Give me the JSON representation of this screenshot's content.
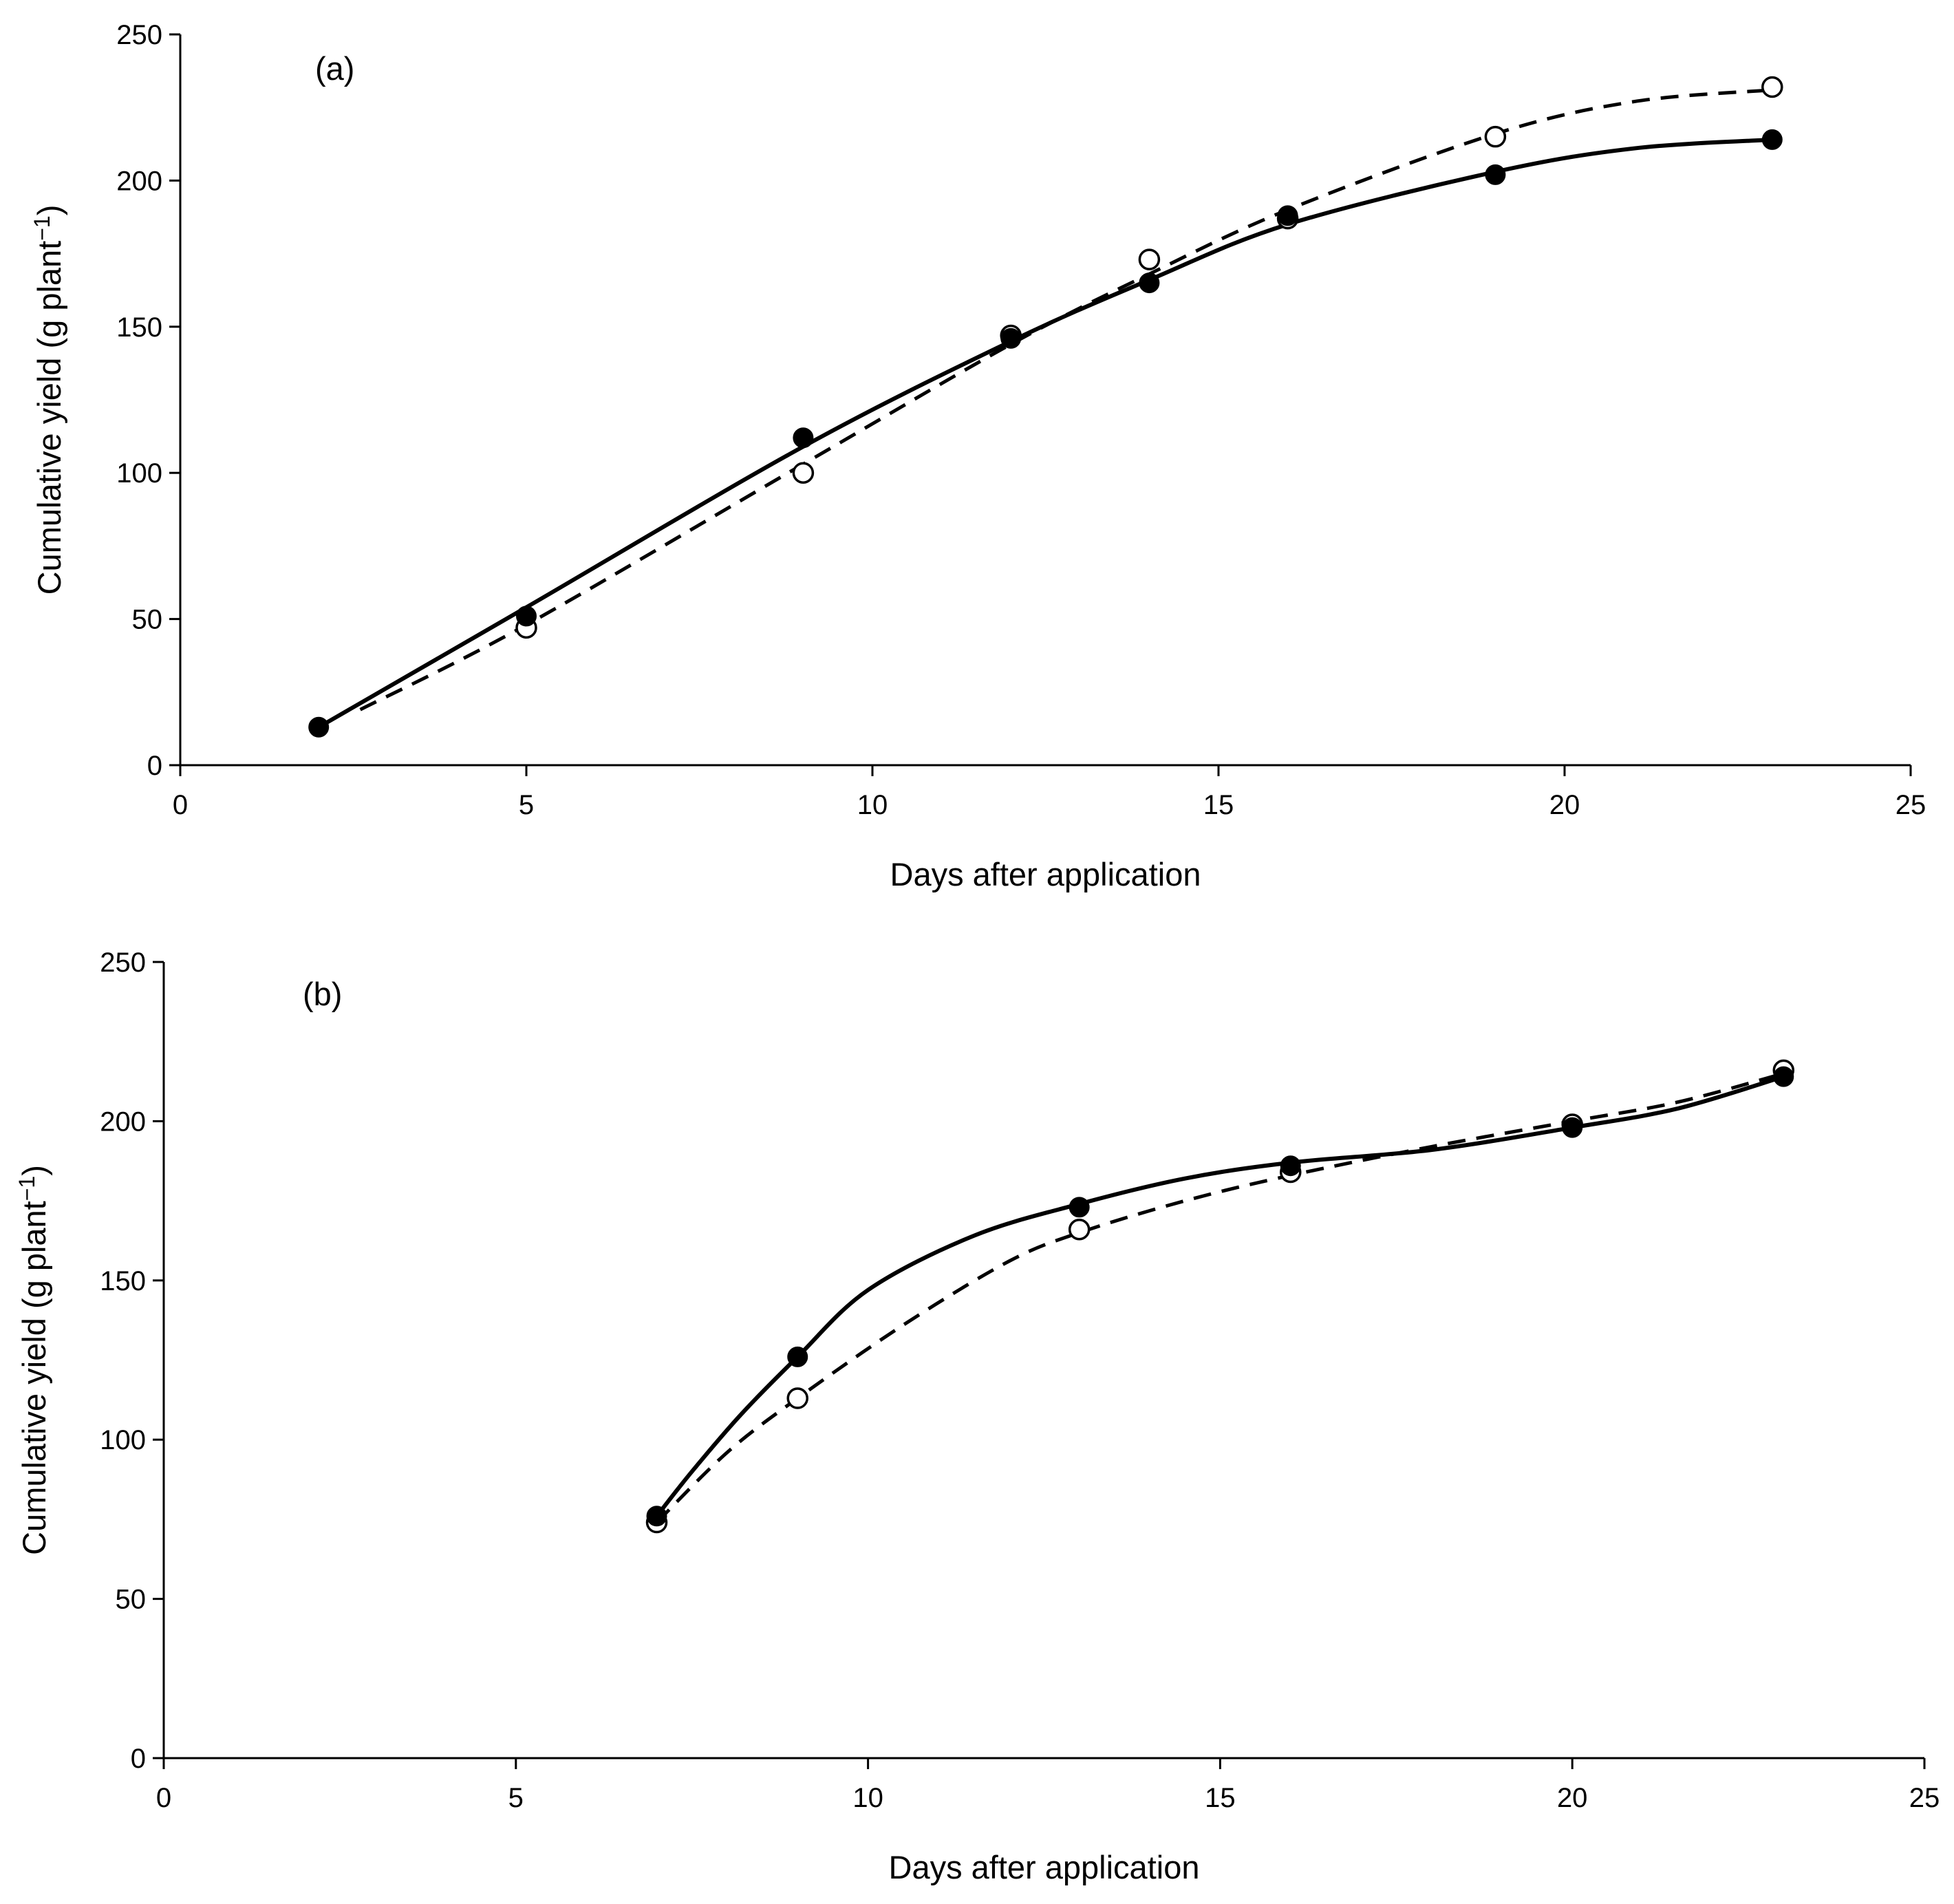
{
  "chart_data": [
    {
      "type": "scatter",
      "panel_label": "(a)",
      "xlabel": "Days after application",
      "ylabel_main": "Cumulative yield (g plant",
      "ylabel_exp": "−1",
      "ylabel_close": ")",
      "xlim": [
        0,
        25
      ],
      "ylim": [
        0,
        250
      ],
      "xticks": [
        0,
        5,
        10,
        15,
        20,
        25
      ],
      "yticks": [
        0,
        50,
        100,
        150,
        200,
        250
      ],
      "grid": false,
      "series": [
        {
          "name": "filled",
          "marker": "filled-circle",
          "line": "solid",
          "points": [
            [
              2,
              13
            ],
            [
              5,
              51
            ],
            [
              9,
              112
            ],
            [
              12,
              146
            ],
            [
              14,
              165
            ],
            [
              16,
              188
            ],
            [
              19,
              202
            ],
            [
              23,
              214
            ]
          ],
          "curve": [
            [
              2,
              13
            ],
            [
              5,
              54
            ],
            [
              9,
              109
            ],
            [
              12,
              145
            ],
            [
              14,
              166
            ],
            [
              16,
              185
            ],
            [
              19,
              203
            ],
            [
              21,
              211
            ],
            [
              23,
              214
            ]
          ]
        },
        {
          "name": "open",
          "marker": "open-circle",
          "line": "dashed",
          "points": [
            [
              5,
              47
            ],
            [
              9,
              100
            ],
            [
              12,
              147
            ],
            [
              14,
              173
            ],
            [
              16,
              187
            ],
            [
              19,
              215
            ],
            [
              23,
              232
            ]
          ],
          "curve": [
            [
              2.6,
              19
            ],
            [
              5,
              48
            ],
            [
              9,
              103
            ],
            [
              12,
              144
            ],
            [
              14,
              168
            ],
            [
              16,
              190
            ],
            [
              19,
              216
            ],
            [
              21,
              227
            ],
            [
              23,
              231
            ]
          ]
        }
      ]
    },
    {
      "type": "scatter",
      "panel_label": "(b)",
      "xlabel": "Days after application",
      "ylabel_main": "Cumulative yield (g plant",
      "ylabel_exp": "−1",
      "ylabel_close": ")",
      "xlim": [
        0,
        25
      ],
      "ylim": [
        0,
        250
      ],
      "xticks": [
        0,
        5,
        10,
        15,
        20,
        25
      ],
      "yticks": [
        0,
        50,
        100,
        150,
        200,
        250
      ],
      "grid": false,
      "series": [
        {
          "name": "filled",
          "marker": "filled-circle",
          "line": "solid",
          "points": [
            [
              7,
              76
            ],
            [
              9,
              126
            ],
            [
              13,
              173
            ],
            [
              16,
              186
            ],
            [
              20,
              198
            ],
            [
              23,
              214
            ]
          ],
          "curve": [
            [
              7,
              76
            ],
            [
              7.5,
              90
            ],
            [
              8.2,
              108
            ],
            [
              9,
              126
            ],
            [
              10,
              147
            ],
            [
              11.5,
              164
            ],
            [
              13,
              174
            ],
            [
              14.5,
              182
            ],
            [
              16,
              187
            ],
            [
              18,
              191
            ],
            [
              20,
              198
            ],
            [
              21.5,
              204
            ],
            [
              23,
              214
            ]
          ]
        },
        {
          "name": "open",
          "marker": "open-circle",
          "line": "dashed",
          "points": [
            [
              7,
              74
            ],
            [
              9,
              113
            ],
            [
              13,
              166
            ],
            [
              16,
              184
            ],
            [
              20,
              199
            ],
            [
              23,
              216
            ]
          ],
          "curve": [
            [
              7,
              74
            ],
            [
              8,
              96
            ],
            [
              9,
              113
            ],
            [
              10.5,
              136
            ],
            [
              12,
              156
            ],
            [
              13,
              165
            ],
            [
              14.5,
              175
            ],
            [
              16,
              183
            ],
            [
              18,
              192
            ],
            [
              20,
              200
            ],
            [
              21.5,
              206
            ],
            [
              23,
              215
            ]
          ]
        }
      ]
    }
  ]
}
